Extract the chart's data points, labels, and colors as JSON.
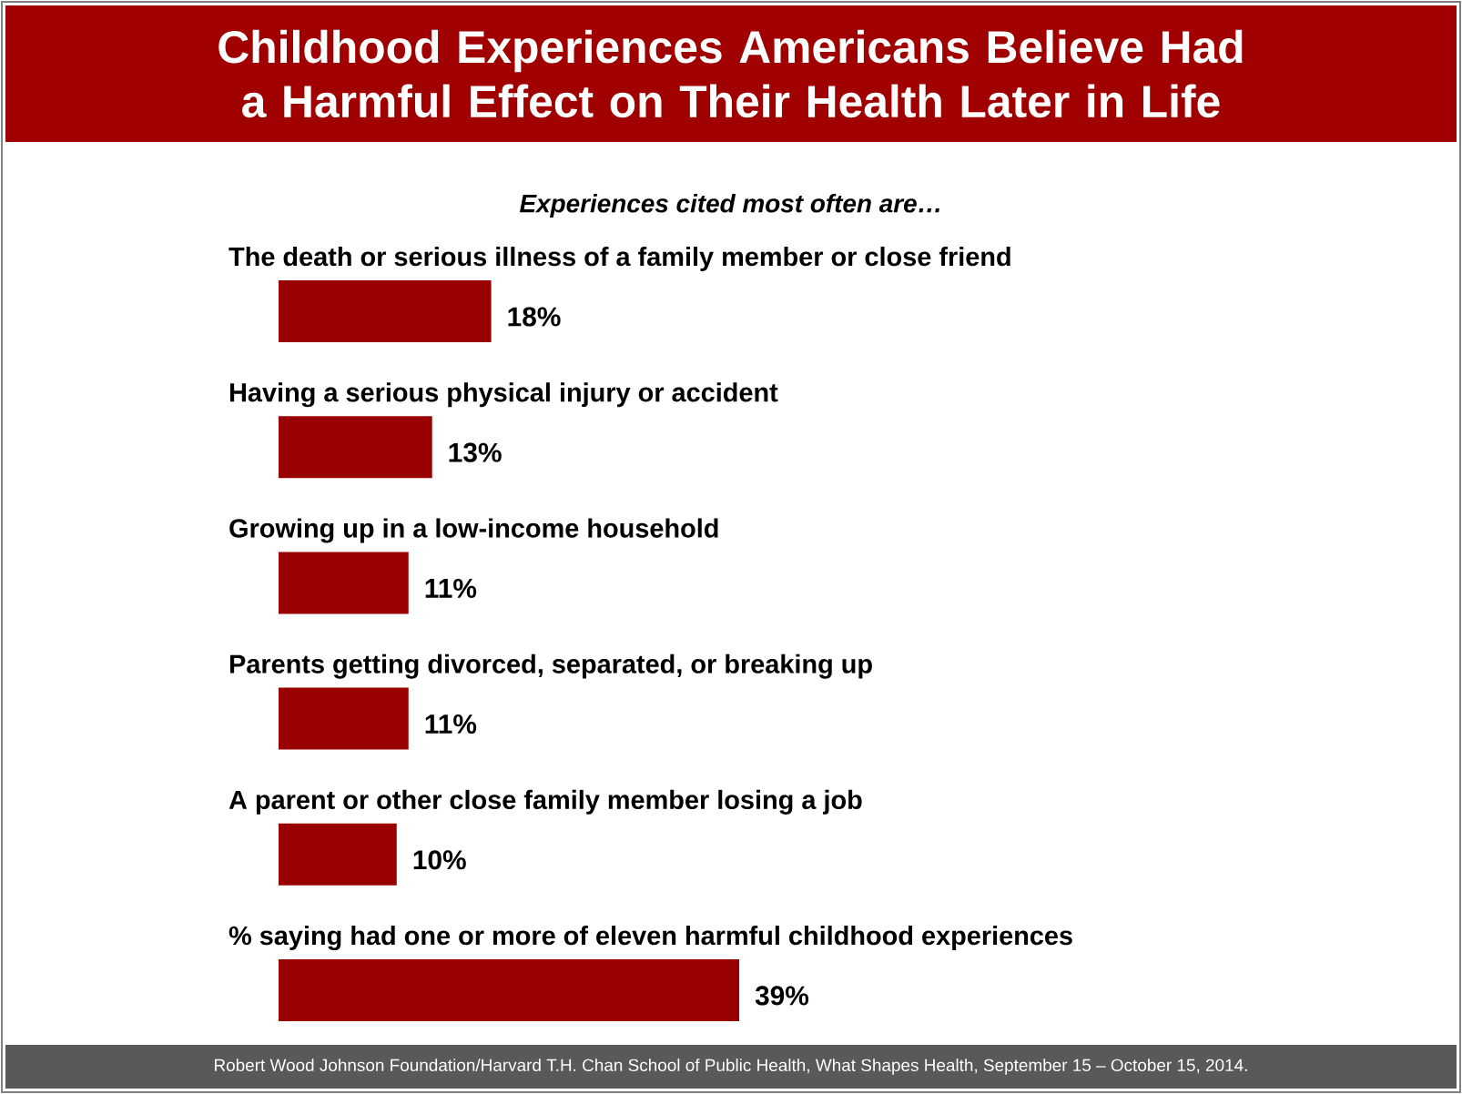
{
  "chart_data": {
    "type": "bar",
    "orientation": "horizontal",
    "title": "Childhood Experiences Americans Believe Had a Harmful Effect on Their Health Later in Life",
    "subtitle": "Experiences cited most often are…",
    "categories": [
      "The death or serious illness of a family member or close friend",
      "Having a serious physical injury or accident",
      "Growing up in a low-income household",
      "Parents getting divorced, separated, or breaking up",
      "A parent or other close family member losing a job",
      "% saying had one or more of eleven harmful childhood experiences"
    ],
    "values": [
      18,
      13,
      11,
      11,
      10,
      39
    ],
    "value_labels": [
      "18%",
      "13%",
      "11%",
      "11%",
      "10%",
      "39%"
    ],
    "color": "#990000",
    "annotations": [
      "Robert Wood Johnson Foundation/Harvard T.H. Chan School of Public Health, What Shapes Health, September 15 – October 15, 2014."
    ]
  }
}
